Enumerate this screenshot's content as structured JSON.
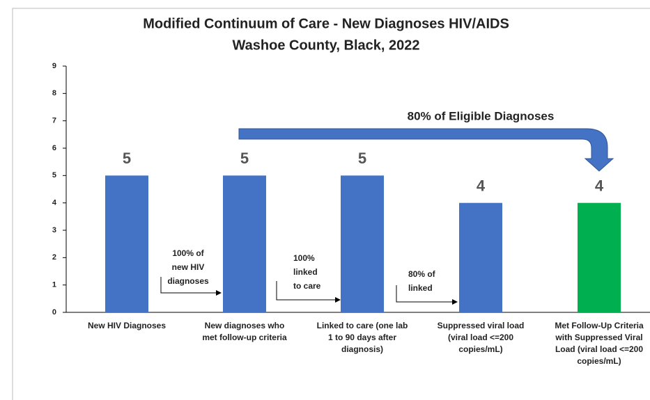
{
  "chart_data": {
    "type": "bar",
    "title": [
      "Modified Continuum of Care - New Diagnoses HIV/AIDS",
      "Washoe County, Black, 2022"
    ],
    "categories": [
      [
        "New HIV Diagnoses"
      ],
      [
        "New diagnoses who",
        "met follow-up criteria"
      ],
      [
        "Linked to care (one lab",
        "1 to 90 days after",
        "diagnosis)"
      ],
      [
        "Suppressed viral load",
        "(viral load <=200",
        "copies/mL)"
      ],
      [
        "Met Follow-Up Criteria",
        "with Suppressed Viral",
        "Load (viral load <=200",
        "copies/mL)"
      ]
    ],
    "values": [
      5,
      5,
      5,
      4,
      4
    ],
    "colors": [
      "#4472c4",
      "#4472c4",
      "#4472c4",
      "#4472c4",
      "#00b050"
    ],
    "ylim": [
      0,
      9
    ],
    "yticks": [
      0,
      1,
      2,
      3,
      4,
      5,
      6,
      7,
      8,
      9
    ],
    "annotations": [
      [
        "100% of",
        "new HIV",
        "diagnoses"
      ],
      [
        "100%",
        "linked",
        "to care"
      ],
      [
        "80% of",
        "linked"
      ],
      [
        "80% of Eligible Diagnoses"
      ]
    ]
  }
}
